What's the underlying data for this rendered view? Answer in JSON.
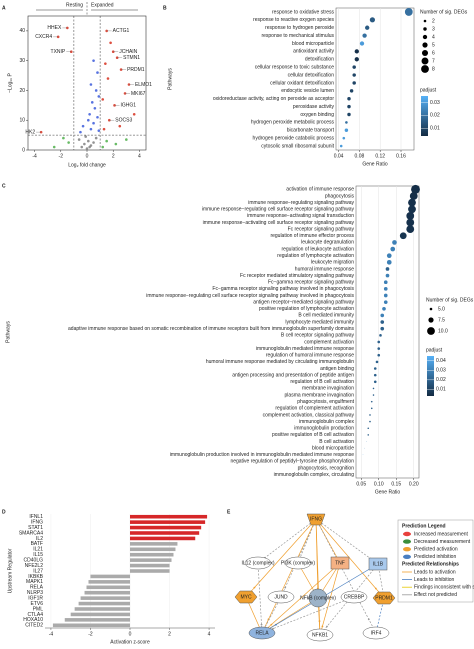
{
  "chart_data": [
    {
      "panel": "A",
      "type": "scatter",
      "x_label": "Log₂ fold change",
      "y_label": "−Log₁₀ P",
      "regions": [
        "Resting",
        "Expanded"
      ],
      "x": [
        1.5,
        1.8,
        2.0,
        2.3,
        1.4,
        2.6,
        1.6,
        3.2,
        2.9,
        1.2,
        2.1,
        3.6,
        1.7,
        2.5,
        1.3,
        -1.5,
        -2.2,
        -3.5,
        -1.2,
        0.5,
        0.8,
        0.3,
        0.7,
        0.9,
        0.4,
        0.6,
        0.2,
        0.8,
        0.5,
        -0.3,
        0.3,
        -0.5,
        0.9,
        0.1,
        0.1,
        -0.2,
        0.3,
        -0.4,
        0.5,
        0,
        -0.6,
        0.7,
        -0.1,
        0.2,
        1.5,
        2.2,
        -1.4,
        -2.5,
        3,
        -1.8,
        1.2
      ],
      "values": [
        40,
        36,
        33,
        31,
        29,
        27,
        24,
        22,
        19,
        17,
        15,
        12,
        10,
        8,
        7,
        41,
        38,
        6,
        33,
        30,
        26,
        22,
        20,
        18,
        16,
        14,
        12,
        11,
        9,
        8,
        7,
        6,
        6.5,
        10,
        3,
        2,
        1.5,
        1,
        2.5,
        0.5,
        3.5,
        4,
        4.5,
        1,
        3,
        2,
        2.5,
        1,
        3.5,
        4,
        1
      ],
      "colors": [
        "#d7301f",
        "#d7301f",
        "#d7301f",
        "#d7301f",
        "#d7301f",
        "#d7301f",
        "#d7301f",
        "#d7301f",
        "#d7301f",
        "#d7301f",
        "#d7301f",
        "#d7301f",
        "#d7301f",
        "#d7301f",
        "#d7301f",
        "#d7301f",
        "#d7301f",
        "#d7301f",
        "#d7301f",
        "#3b5bdb",
        "#3b5bdb",
        "#3b5bdb",
        "#3b5bdb",
        "#3b5bdb",
        "#3b5bdb",
        "#3b5bdb",
        "#3b5bdb",
        "#3b5bdb",
        "#3b5bdb",
        "#3b5bdb",
        "#3b5bdb",
        "#3b5bdb",
        "#3b5bdb",
        "#3b5bdb",
        "#808080",
        "#808080",
        "#808080",
        "#808080",
        "#808080",
        "#808080",
        "#808080",
        "#808080",
        "#808080",
        "#808080",
        "#4daf4a",
        "#4daf4a",
        "#4daf4a",
        "#4daf4a",
        "#4daf4a",
        "#4daf4a",
        "#4daf4a"
      ],
      "annotations": [
        {
          "text": "HHEX",
          "index": 15
        },
        {
          "text": "CXCR4",
          "index": 16
        },
        {
          "text": "TXNIP",
          "index": 18
        },
        {
          "text": "HK2",
          "index": 17
        },
        {
          "text": "ACTG1",
          "index": 0
        },
        {
          "text": "JCHAIN",
          "index": 2
        },
        {
          "text": "STMN1",
          "index": 3
        },
        {
          "text": "PRDM1",
          "index": 5
        },
        {
          "text": "ELMO1",
          "index": 7
        },
        {
          "text": "MKI67",
          "index": 8
        },
        {
          "text": "IGHG1",
          "index": 10
        },
        {
          "text": "SOCS3",
          "index": 12
        }
      ],
      "vlines": [
        -1,
        1
      ],
      "hline": 5,
      "xlim": [
        -4.5,
        4.5
      ],
      "xticks": [
        -4,
        -2,
        0,
        2,
        4
      ],
      "ylim": [
        0,
        45
      ],
      "yticks": [
        0,
        10,
        20,
        30,
        40
      ]
    },
    {
      "panel": "B",
      "type": "dot",
      "x_label": "Gene Ratio",
      "y_label": "Pathways",
      "categories": [
        "response to oxidative stress",
        "response to reactive oxygen species",
        "response to hydrogen peroxide",
        "response to mechanical stimulus",
        "blood microparticle",
        "antioxidant activity",
        "detoxification",
        "cellular response to toxic substance",
        "cellular detoxification",
        "cellular oxidant detoxification",
        "endocytic vesicle lumen",
        "oxidoreductase activity, acting on peroxide as acceptor",
        "peroxidase activity",
        "oxygen binding",
        "hydrogen peroxide metabolic process",
        "bicarbonate transport",
        "hydrogen peroxide catabolic process",
        "cytosolic small ribosomal subunit"
      ],
      "values": [
        0.175,
        0.105,
        0.095,
        0.09,
        0.085,
        0.075,
        0.075,
        0.07,
        0.07,
        0.07,
        0.065,
        0.06,
        0.06,
        0.06,
        0.055,
        0.055,
        0.05,
        0.045
      ],
      "sizes": [
        8,
        5,
        4,
        4,
        4,
        4,
        4,
        3,
        3,
        3,
        3,
        3,
        3,
        3,
        2,
        3,
        2,
        2
      ],
      "padjust": [
        0.02,
        0.015,
        0.015,
        0.02,
        0.03,
        0.005,
        0.005,
        0.01,
        0.01,
        0.01,
        0.01,
        0.01,
        0.01,
        0.01,
        0.02,
        0.03,
        0.03,
        0.03
      ],
      "size_title": "Number of sig. DEGs",
      "size_legend": [
        2,
        3,
        4,
        5,
        6,
        7,
        8
      ],
      "color_title": "padjust",
      "color_range": [
        "#132B43",
        "#56B1F7"
      ],
      "clim": [
        0.004,
        0.035
      ],
      "cticks": [
        0.03,
        0.02,
        0.01
      ],
      "xlim": [
        0.035,
        0.185
      ],
      "xticks": [
        0.04,
        0.08,
        0.12,
        0.16
      ]
    },
    {
      "panel": "C",
      "type": "dot",
      "x_label": "Gene Ratio",
      "y_label": "Pathways",
      "categories": [
        "activation of immune response",
        "phagocytosis",
        "immune response−regulating signaling pathway",
        "immune response−regulating cell surface receptor signaling pathway",
        "immune response−activating signal transduction",
        "immune response−activating cell surface receptor signaling pathway",
        "Fc receptor signaling pathway",
        "regulation of immune effector process",
        "leukocyte degranulation",
        "regulation of leukocyte activation",
        "regulation of lymphocyte activation",
        "leukocyte migration",
        "humoral immune response",
        "Fc receptor mediated stimulatory signaling pathway",
        "Fc−gamma receptor signaling pathway",
        "Fc−gamma receptor signaling pathway involved in phagocytosis",
        "immune response−regulating cell surface receptor signaling pathway involved in phagocytosis",
        "antigen receptor−mediated signaling pathway",
        "positive regulation of lymphocyte activation",
        "B cell mediated immunity",
        "lymphocyte mediated immunity",
        "adaptive immune response based on somatic recombination of immune receptors built from immunoglobulin superfamily domains",
        "B cell receptor signaling pathway",
        "complement activation",
        "immunoglobulin mediated immune response",
        "regulation of humoral immune response",
        "humoral immune response mediated by circulating immunoglobulin",
        "antigen binding",
        "antigen processing and presentation of peptide antigen",
        "regulation of B cell activation",
        "membrane invagination",
        "plasma membrane invagination",
        "phagocytosis, engulfment",
        "regulation of complement activation",
        "complement activation, classical pathway",
        "immunoglobulin complex",
        "immunoglobulin production",
        "positive regulation of B cell activation",
        "B cell activation",
        "blood microparticle",
        "immunoglobulin production involved in immunoglobulin mediated immune response",
        "negative regulation of peptidyl−tyrosine phosphorylation",
        "phagocytosis, recognition",
        "immunoglobulin complex, circulating"
      ],
      "values": [
        0.205,
        0.2,
        0.195,
        0.195,
        0.19,
        0.19,
        0.19,
        0.17,
        0.145,
        0.14,
        0.13,
        0.13,
        0.125,
        0.125,
        0.12,
        0.12,
        0.12,
        0.12,
        0.115,
        0.11,
        0.11,
        0.11,
        0.105,
        0.1,
        0.1,
        0.1,
        0.095,
        0.09,
        0.09,
        0.09,
        0.085,
        0.085,
        0.08,
        0.08,
        0.075,
        0.075,
        0.07,
        0.07,
        0.065,
        0.06,
        0.055,
        0.05,
        0.05,
        0.045
      ],
      "sizes": [
        11,
        10,
        10,
        10,
        10,
        10,
        10,
        9,
        7,
        7,
        7,
        7,
        6,
        6,
        6,
        6,
        6,
        6,
        6,
        6,
        6,
        6,
        5,
        5,
        5,
        5,
        5,
        5,
        5,
        5,
        4,
        4,
        4,
        4,
        4,
        4,
        4,
        4,
        3,
        3,
        3,
        2,
        2,
        2
      ],
      "padjust": [
        0.004,
        0.004,
        0.005,
        0.005,
        0.005,
        0.005,
        0.005,
        0.006,
        0.03,
        0.03,
        0.03,
        0.03,
        0.02,
        0.03,
        0.03,
        0.03,
        0.03,
        0.03,
        0.03,
        0.03,
        0.02,
        0.02,
        0.02,
        0.02,
        0.02,
        0.02,
        0.02,
        0.02,
        0.02,
        0.02,
        0.02,
        0.02,
        0.02,
        0.02,
        0.02,
        0.02,
        0.02,
        0.02,
        0.03,
        0.03,
        0.04,
        0.04,
        0.04,
        0.04
      ],
      "size_title": "Number of sig. DEGs",
      "size_legend": [
        {
          "value": 5,
          "label": "5.0"
        },
        7.5,
        {
          "value": 10,
          "label": "10.0"
        }
      ],
      "color_title": "padjust",
      "color_range": [
        "#132B43",
        "#56B1F7"
      ],
      "clim": [
        0.003,
        0.045
      ],
      "cticks": [
        0.04,
        0.03,
        0.02,
        0.01
      ],
      "xlim": [
        0.035,
        0.215
      ],
      "xticks": [
        0.05,
        {
          "value": 0.1,
          "label": "0.10"
        },
        0.15,
        {
          "value": 0.2,
          "label": "0.20"
        }
      ]
    },
    {
      "panel": "D",
      "type": "bar",
      "x_label": "Activation z-score",
      "y_label": "Upstream Regulator",
      "categories": [
        "IFNL1",
        "IFNG",
        "STAT1",
        "SMARCA4",
        "IL2",
        "BATF",
        "IL21",
        "IL15",
        "CD40LG",
        "NFE2L2",
        "IL27",
        "IKBKB",
        "MAPK1",
        "RELA",
        "NLRP3",
        "IGF1R",
        "ETV6",
        "PML",
        "CTLA4",
        "HOXA10",
        "CITED2"
      ],
      "values": [
        3.9,
        3.8,
        3.6,
        3.5,
        3.3,
        2.4,
        2.3,
        2.2,
        2.1,
        2.0,
        2.0,
        -2.0,
        -2.1,
        -2.2,
        -2.3,
        -2.5,
        -2.6,
        -2.8,
        -3.0,
        -3.3,
        -3.9
      ],
      "colors": [
        "#d62728",
        "#d62728",
        "#d62728",
        "#d62728",
        "#d62728",
        "#aaaaaa",
        "#aaaaaa",
        "#aaaaaa",
        "#aaaaaa",
        "#aaaaaa",
        "#aaaaaa",
        "#aaaaaa",
        "#aaaaaa",
        "#aaaaaa",
        "#aaaaaa",
        "#aaaaaa",
        "#aaaaaa",
        "#aaaaaa",
        "#aaaaaa",
        "#aaaaaa",
        "#aaaaaa"
      ],
      "xlim": [
        -4.3,
        4.3
      ],
      "xticks": [
        -4,
        -2,
        0,
        2,
        4
      ]
    }
  ],
  "diagram": {
    "panel": "E",
    "nodes": [
      {
        "label": "IFNG",
        "color": "#f0a030"
      },
      {
        "label": "IL12 (complex)",
        "color": "#ffffff"
      },
      {
        "label": "PI3K (complex)",
        "color": "#ffffff"
      },
      {
        "label": "TNF",
        "color": "#f4b183"
      },
      {
        "label": "IL1B",
        "color": "#a9c9ec"
      },
      {
        "label": "MYC",
        "color": "#f0a030"
      },
      {
        "label": "JUND",
        "color": "#ffffff"
      },
      {
        "label": "NFkB (complex)",
        "color": "#9db3c8"
      },
      {
        "label": "CREBBP",
        "color": "#ffffff"
      },
      {
        "label": "PRDM1",
        "color": "#f0a030"
      },
      {
        "label": "RELA",
        "color": "#8fb3de"
      },
      {
        "label": "NFKB1",
        "color": "#ffffff"
      },
      {
        "label": "IRF4",
        "color": "#ffffff"
      }
    ],
    "legend": {
      "title": "Prediction Legend",
      "items": [
        "Increased measurement",
        "Decreased measurement",
        "Predicted activation",
        "Predicted inhibition",
        "Predicted Relationships",
        "Leads to activation",
        "Leads to inhibition",
        "Findings inconsistent with state of downstream molecule",
        "Effect not predicted"
      ]
    }
  }
}
